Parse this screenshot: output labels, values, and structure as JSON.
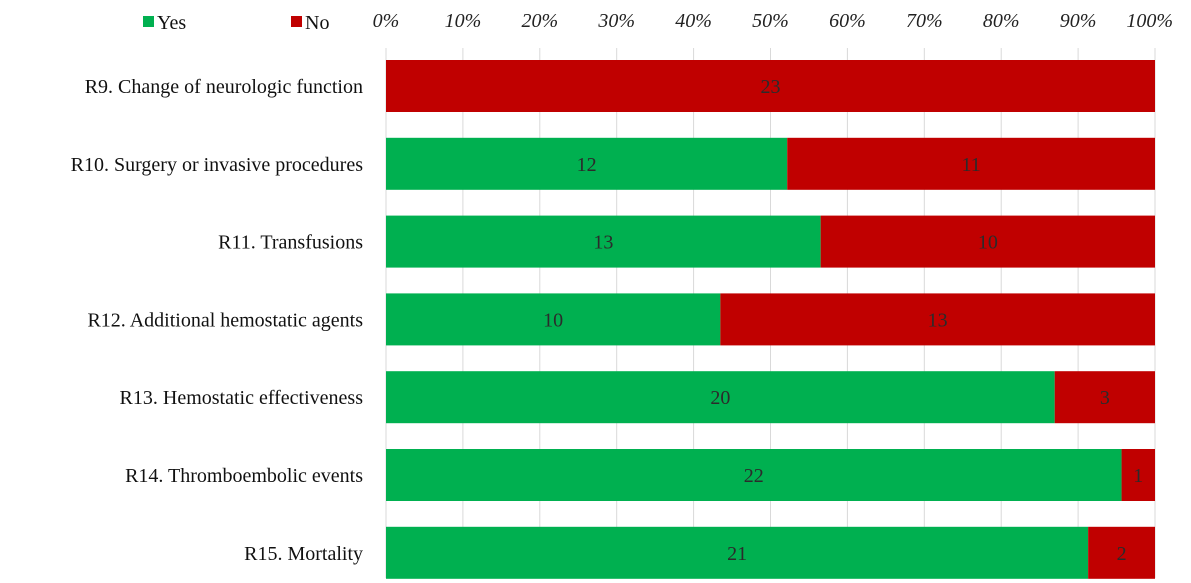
{
  "chart_data": {
    "type": "bar",
    "orientation": "horizontal",
    "stacked": "percent",
    "title": "",
    "xlabel": "",
    "ylabel": "",
    "xlim": [
      0,
      100
    ],
    "x_tick_labels": [
      "0%",
      "10%",
      "20%",
      "30%",
      "40%",
      "50%",
      "60%",
      "70%",
      "80%",
      "90%",
      "100%"
    ],
    "x_axis_position": "top",
    "grid": true,
    "legend_position": "top-left",
    "categories": [
      "R9. Change of neurologic function",
      "R10. Surgery or invasive procedures",
      "R11. Transfusions",
      "R12. Additional hemostatic agents",
      "R13. Hemostatic effectiveness",
      "R14. Thromboembolic events",
      "R15. Mortality"
    ],
    "series": [
      {
        "name": "Yes",
        "color": "#00b050",
        "values": [
          0,
          12,
          13,
          10,
          20,
          22,
          21
        ]
      },
      {
        "name": "No",
        "color": "#c00000",
        "values": [
          23,
          11,
          10,
          13,
          3,
          1,
          2
        ]
      }
    ]
  }
}
